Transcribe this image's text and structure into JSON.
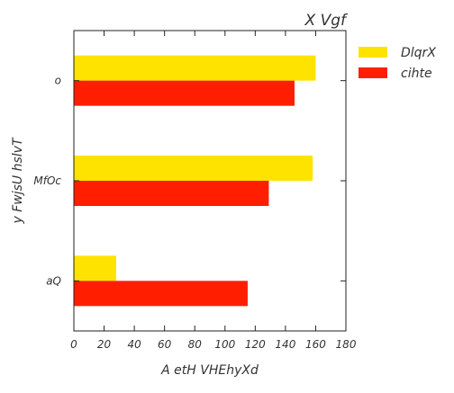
{
  "chart_data": {
    "type": "bar",
    "orientation": "horizontal",
    "title": "X Vgf",
    "xlabel": "A etH VHEhyXd",
    "ylabel": "y FwjsU hslvT",
    "categories": [
      "o",
      "MfOc",
      "aQ"
    ],
    "series": [
      {
        "name": "DlqrX",
        "color": "#FFE300",
        "values": [
          160,
          158,
          28
        ]
      },
      {
        "name": "cihte",
        "color": "#FF1E00",
        "values": [
          146,
          129,
          115
        ]
      }
    ],
    "xlim": [
      0,
      180
    ],
    "xticks": [
      "0",
      "20",
      "40",
      "60",
      "80",
      "100",
      "120",
      "140",
      "160",
      "180"
    ],
    "grid": false,
    "legend_position": "outside-right"
  }
}
